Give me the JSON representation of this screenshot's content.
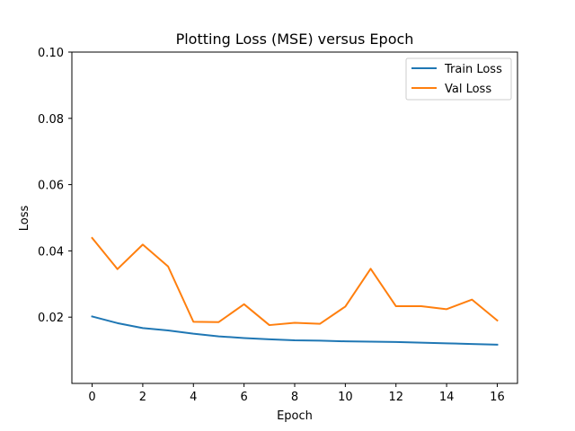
{
  "chart_data": {
    "type": "line",
    "title": "Plotting Loss (MSE) versus Epoch",
    "xlabel": "Epoch",
    "ylabel": "Loss",
    "xlim": [
      -0.8,
      16.8
    ],
    "ylim": [
      0.0,
      0.1
    ],
    "x_ticks": [
      0,
      2,
      4,
      6,
      8,
      10,
      12,
      14,
      16
    ],
    "x_tick_labels": [
      "0",
      "2",
      "4",
      "6",
      "8",
      "10",
      "12",
      "14",
      "16"
    ],
    "y_ticks": [
      0.02,
      0.04,
      0.06,
      0.08,
      0.1
    ],
    "y_tick_labels": [
      "0.02",
      "0.04",
      "0.06",
      "0.08",
      "0.10"
    ],
    "grid": false,
    "legend_position": "top-right",
    "x": [
      0,
      1,
      2,
      3,
      4,
      5,
      6,
      7,
      8,
      9,
      10,
      11,
      12,
      13,
      14,
      15,
      16
    ],
    "series": [
      {
        "name": "Train Loss",
        "color": "#1f77b4",
        "values": [
          0.0202,
          0.0182,
          0.0167,
          0.016,
          0.015,
          0.0142,
          0.0137,
          0.0133,
          0.013,
          0.0129,
          0.0127,
          0.0126,
          0.0125,
          0.0123,
          0.0121,
          0.0119,
          0.0117
        ]
      },
      {
        "name": "Val Loss",
        "color": "#ff7f0e",
        "values": [
          0.0439,
          0.0345,
          0.0419,
          0.0353,
          0.0186,
          0.0185,
          0.0239,
          0.0176,
          0.0183,
          0.018,
          0.0232,
          0.0346,
          0.0233,
          0.0233,
          0.0224,
          0.0253,
          0.019
        ]
      }
    ]
  }
}
